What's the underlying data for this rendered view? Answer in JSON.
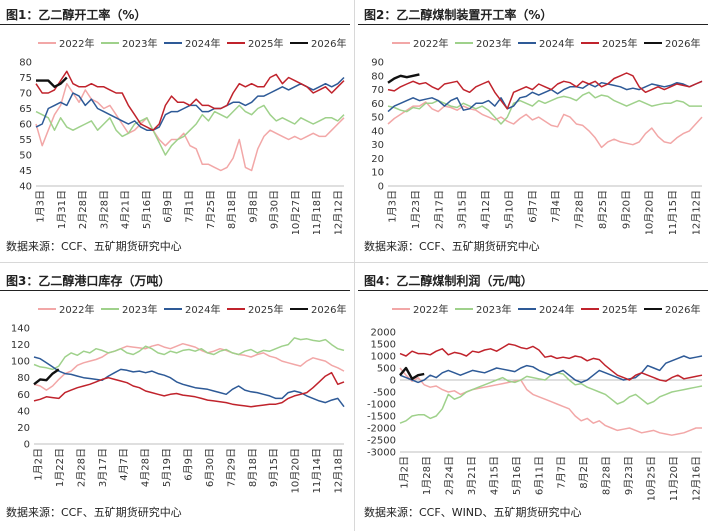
{
  "panels": [
    {
      "title": "图1：乙二醇开工率（%）",
      "source": "数据来源：CCF、五矿期货研究中心"
    },
    {
      "title": "图2：乙二醇煤制装置开工率（%）",
      "source": "数据来源：CCF、五矿期货研究中心"
    },
    {
      "title": "图3：乙二醇港口库存（万吨）",
      "source": "数据来源：CCF、五矿期货研究中心"
    },
    {
      "title": "图4：乙二醇煤制利润（元/吨）",
      "source": "数据来源：CCF、WIND、五矿期货研究中心"
    }
  ],
  "colors": {
    "2022年": "#f2a7a7",
    "2023年": "#9fd18b",
    "2024年": "#2e5a97",
    "2025年": "#c0232c",
    "2026年": "#111111"
  },
  "chart_data": [
    {
      "type": "line",
      "title": "图1：乙二醇开工率（%）",
      "ylim": [
        40,
        80
      ],
      "yticks": [
        40,
        45,
        50,
        55,
        60,
        65,
        70,
        75,
        80
      ],
      "xticks": [
        "1月3日",
        "1月31日",
        "2月28日",
        "3月28日",
        "4月21日",
        "5月16日",
        "6月9日",
        "7月1日",
        "7月25日",
        "8月18日",
        "9月8日",
        "9月30日",
        "10月27日",
        "11月18日",
        "12月12日"
      ],
      "series": [
        {
          "name": "2022年",
          "values": [
            60,
            53,
            58,
            63,
            66,
            73,
            70,
            67,
            71,
            68,
            67,
            65,
            66,
            63,
            60,
            57,
            58,
            60,
            62,
            58,
            55,
            53,
            55,
            55,
            57,
            53,
            52,
            47,
            47,
            46,
            45,
            46,
            49,
            55,
            46,
            45,
            52,
            56,
            58,
            57,
            56,
            55,
            56,
            55,
            56,
            57,
            56,
            56,
            58,
            60,
            62
          ]
        },
        {
          "name": "2023年",
          "values": [
            64,
            63,
            62,
            58,
            62,
            59,
            58,
            59,
            60,
            61,
            58,
            60,
            62,
            58,
            56,
            57,
            60,
            61,
            62,
            58,
            54,
            50,
            53,
            55,
            56,
            58,
            60,
            63,
            61,
            64,
            63,
            62,
            64,
            66,
            64,
            63,
            65,
            66,
            63,
            61,
            62,
            61,
            60,
            62,
            61,
            60,
            61,
            62,
            62,
            61,
            63
          ]
        },
        {
          "name": "2024年",
          "values": [
            59,
            60,
            65,
            66,
            67,
            66,
            70,
            69,
            66,
            68,
            65,
            64,
            63,
            62,
            61,
            60,
            61,
            59,
            58,
            58,
            59,
            63,
            64,
            64,
            65,
            66,
            66,
            64,
            64,
            65,
            65,
            66,
            67,
            67,
            66,
            67,
            69,
            69,
            70,
            71,
            72,
            71,
            72,
            73,
            72,
            71,
            72,
            73,
            72,
            73,
            75
          ]
        },
        {
          "name": "2025年",
          "values": [
            73,
            70,
            70,
            71,
            74,
            77,
            73,
            72,
            72,
            73,
            72,
            72,
            71,
            70,
            70,
            66,
            63,
            60,
            59,
            58,
            60,
            66,
            69,
            67,
            67,
            66,
            68,
            66,
            66,
            65,
            65,
            66,
            70,
            73,
            72,
            73,
            72,
            72,
            75,
            76,
            73,
            75,
            74,
            73,
            72,
            70,
            71,
            72,
            70,
            72,
            74
          ]
        },
        {
          "name": "2026年",
          "values": [
            74,
            74,
            74,
            72,
            73,
            75
          ]
        }
      ]
    },
    {
      "type": "line",
      "title": "图2：乙二醇煤制装置开工率（%）",
      "ylim": [
        0,
        90
      ],
      "yticks": [
        0,
        10,
        20,
        30,
        40,
        50,
        60,
        70,
        80,
        90
      ],
      "xticks": [
        "1月3日",
        "1月23日",
        "2月17日",
        "3月15日",
        "4月12日",
        "5月10日",
        "6月7日",
        "7月4日",
        "7月28日",
        "8月25日",
        "9月20日",
        "10月20日",
        "11月15日",
        "12月12日"
      ],
      "series": [
        {
          "name": "2022年",
          "values": [
            45,
            49,
            52,
            55,
            58,
            58,
            61,
            56,
            54,
            58,
            57,
            55,
            58,
            56,
            55,
            52,
            50,
            48,
            50,
            47,
            45,
            49,
            52,
            48,
            50,
            47,
            44,
            43,
            52,
            50,
            45,
            44,
            40,
            35,
            28,
            32,
            34,
            32,
            31,
            30,
            32,
            38,
            42,
            36,
            32,
            31,
            35,
            38,
            40,
            45,
            50
          ]
        },
        {
          "name": "2023年",
          "values": [
            58,
            57,
            55,
            54,
            57,
            56,
            60,
            60,
            62,
            60,
            58,
            57,
            60,
            58,
            56,
            58,
            55,
            50,
            45,
            50,
            60,
            62,
            60,
            58,
            62,
            60,
            62,
            64,
            65,
            64,
            62,
            66,
            68,
            64,
            66,
            65,
            62,
            60,
            58,
            60,
            62,
            60,
            58,
            59,
            60,
            60,
            62,
            61,
            58,
            58,
            58
          ]
        },
        {
          "name": "2024年",
          "values": [
            54,
            58,
            60,
            62,
            64,
            62,
            63,
            64,
            62,
            58,
            62,
            64,
            55,
            56,
            60,
            60,
            62,
            58,
            64,
            56,
            58,
            64,
            65,
            68,
            66,
            68,
            70,
            67,
            70,
            72,
            72,
            71,
            74,
            72,
            75,
            74,
            73,
            72,
            70,
            71,
            70,
            72,
            74,
            73,
            72,
            73,
            75,
            74,
            72,
            74,
            76
          ]
        },
        {
          "name": "2025年",
          "values": [
            70,
            69,
            72,
            74,
            76,
            74,
            75,
            72,
            70,
            74,
            75,
            76,
            70,
            68,
            72,
            74,
            76,
            68,
            62,
            56,
            68,
            70,
            72,
            70,
            74,
            72,
            70,
            74,
            76,
            75,
            72,
            76,
            74,
            76,
            72,
            74,
            78,
            80,
            82,
            80,
            72,
            68,
            70,
            72,
            70,
            72,
            74,
            73,
            72,
            74,
            76
          ]
        },
        {
          "name": "2026年",
          "values": [
            75,
            78,
            80,
            79,
            80,
            81
          ]
        }
      ]
    },
    {
      "type": "line",
      "title": "图3：乙二醇港口库存（万吨）",
      "ylim": [
        0,
        140
      ],
      "yticks": [
        0,
        20,
        40,
        60,
        80,
        100,
        120,
        140
      ],
      "xticks": [
        "1月2日",
        "1月22日",
        "2月28日",
        "3月17日",
        "4月7日",
        "4月28日",
        "5月19日",
        "6月9日",
        "6月30日",
        "7月29日",
        "8月18日",
        "9月15日",
        "10月20日",
        "11月14日",
        "12月18日"
      ],
      "series": [
        {
          "name": "2022年",
          "values": [
            72,
            70,
            65,
            70,
            78,
            85,
            88,
            95,
            98,
            100,
            102,
            105,
            110,
            112,
            115,
            118,
            117,
            116,
            115,
            118,
            120,
            117,
            115,
            118,
            121,
            119,
            117,
            113,
            110,
            112,
            115,
            113,
            110,
            108,
            107,
            105,
            108,
            110,
            106,
            104,
            100,
            98,
            96,
            94,
            100,
            104,
            102,
            100,
            95,
            92,
            88
          ]
        },
        {
          "name": "2023年",
          "values": [
            96,
            93,
            92,
            90,
            94,
            105,
            110,
            107,
            112,
            110,
            115,
            113,
            110,
            112,
            115,
            110,
            108,
            112,
            118,
            115,
            110,
            108,
            112,
            110,
            113,
            114,
            112,
            115,
            110,
            108,
            112,
            114,
            110,
            108,
            112,
            114,
            110,
            113,
            112,
            115,
            118,
            120,
            128,
            126,
            127,
            125,
            124,
            126,
            120,
            115,
            113
          ]
        },
        {
          "name": "2024年",
          "values": [
            105,
            103,
            98,
            93,
            88,
            85,
            84,
            82,
            80,
            79,
            78,
            77,
            82,
            86,
            90,
            89,
            87,
            88,
            86,
            88,
            85,
            83,
            80,
            75,
            72,
            70,
            68,
            67,
            66,
            64,
            62,
            60,
            66,
            70,
            65,
            63,
            62,
            60,
            58,
            55,
            55,
            62,
            64,
            62,
            58,
            55,
            52,
            50,
            53,
            55,
            45
          ]
        },
        {
          "name": "2025年",
          "values": [
            52,
            54,
            57,
            56,
            55,
            62,
            65,
            68,
            70,
            72,
            75,
            78,
            80,
            78,
            76,
            74,
            70,
            68,
            64,
            62,
            60,
            58,
            60,
            61,
            59,
            58,
            57,
            55,
            53,
            52,
            51,
            50,
            48,
            47,
            46,
            45,
            46,
            47,
            48,
            48,
            50,
            55,
            58,
            60,
            62,
            68,
            75,
            82,
            86,
            72,
            75
          ]
        },
        {
          "name": "2026年",
          "values": [
            72,
            78,
            77,
            85,
            90
          ]
        }
      ]
    },
    {
      "type": "line",
      "title": "图4：乙二醇煤制利润（元/吨）",
      "ylim": [
        -3000,
        2000
      ],
      "yticks": [
        -3000,
        -2500,
        -2000,
        -1500,
        -1000,
        -500,
        0,
        500,
        1000,
        1500,
        2000
      ],
      "xticks": [
        "1月2日",
        "1月28日",
        "2月24日",
        "3月21日",
        "4月15日",
        "5月16日",
        "6月11日",
        "7月7日",
        "8月2日",
        "8月28日",
        "9月23日",
        "10月25日",
        "11月20日",
        "12月16日"
      ],
      "series": [
        {
          "name": "2022年",
          "values": [
            500,
            200,
            -50,
            100,
            -200,
            -300,
            -250,
            -400,
            -500,
            -450,
            -600,
            -500,
            -400,
            -350,
            -300,
            -250,
            -200,
            -150,
            -100,
            -50,
            0,
            -400,
            -600,
            -700,
            -800,
            -900,
            -1000,
            -1100,
            -1200,
            -1500,
            -1700,
            -1600,
            -1800,
            -1700,
            -1900,
            -2000,
            -2100,
            -2050,
            -2000,
            -2100,
            -2200,
            -2150,
            -2100,
            -2200,
            -2250,
            -2300,
            -2250,
            -2200,
            -2100,
            -2000,
            -2000
          ]
        },
        {
          "name": "2023年",
          "values": [
            -1800,
            -1700,
            -1500,
            -1450,
            -1450,
            -1600,
            -1500,
            -1200,
            -600,
            -800,
            -700,
            -500,
            -400,
            -300,
            -200,
            -100,
            0,
            100,
            -50,
            -100,
            0,
            150,
            100,
            50,
            0,
            200,
            300,
            250,
            0,
            -200,
            -150,
            -300,
            -400,
            -500,
            -600,
            -800,
            -1000,
            -900,
            -700,
            -600,
            -800,
            -1000,
            -900,
            -700,
            -600,
            -500,
            -450,
            -400,
            -350,
            -300,
            -250
          ]
        },
        {
          "name": "2024年",
          "values": [
            200,
            100,
            0,
            -100,
            0,
            200,
            100,
            300,
            400,
            300,
            200,
            300,
            400,
            350,
            300,
            400,
            500,
            450,
            400,
            350,
            500,
            600,
            550,
            400,
            300,
            200,
            300,
            400,
            200,
            0,
            -100,
            0,
            200,
            400,
            300,
            200,
            100,
            0,
            50,
            100,
            300,
            600,
            500,
            400,
            700,
            800,
            900,
            1000,
            900,
            950,
            1000
          ]
        },
        {
          "name": "2025年",
          "values": [
            1100,
            1000,
            1200,
            1100,
            1100,
            1050,
            1200,
            1300,
            1050,
            1150,
            1100,
            1000,
            1200,
            1150,
            1250,
            1300,
            1200,
            1350,
            1500,
            1450,
            1350,
            1300,
            1400,
            1250,
            950,
            1000,
            900,
            950,
            900,
            1000,
            950,
            800,
            900,
            850,
            600,
            400,
            200,
            100,
            0,
            200,
            300,
            200,
            100,
            0,
            -50,
            100,
            200,
            50,
            100,
            150,
            200
          ]
        },
        {
          "name": "2026年",
          "values": [
            200,
            500,
            50,
            200,
            250
          ]
        }
      ]
    }
  ]
}
